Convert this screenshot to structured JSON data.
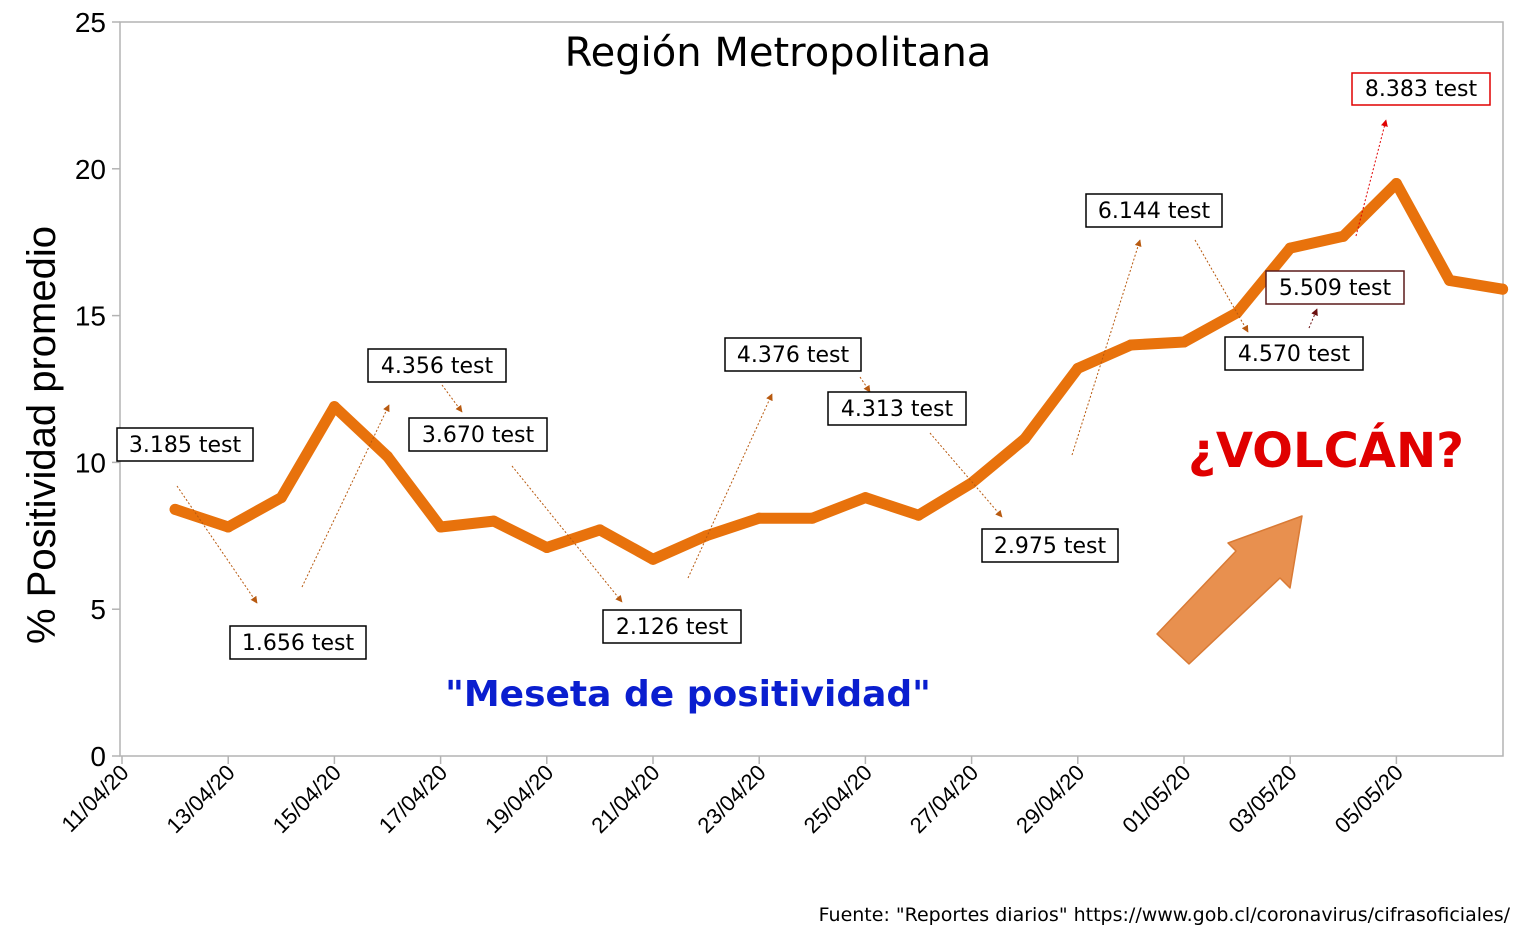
{
  "chart_data": {
    "type": "line",
    "title": "Región Metropolitana",
    "ylabel": "% Positividad promedio",
    "xlabel": "",
    "ylim": [
      0,
      25
    ],
    "yticks": [
      0,
      5,
      10,
      15,
      20,
      25
    ],
    "grid": false,
    "x_tick_labels": [
      "11/04/20",
      "13/04/20",
      "15/04/20",
      "17/04/20",
      "19/04/20",
      "21/04/20",
      "23/04/20",
      "25/04/20",
      "27/04/20",
      "29/04/20",
      "01/05/20",
      "03/05/20",
      "05/05/20"
    ],
    "series": [
      {
        "color": "#e8720c",
        "x": [
          "12/04/20",
          "13/04/20",
          "14/04/20",
          "15/04/20",
          "16/04/20",
          "17/04/20",
          "18/04/20",
          "19/04/20",
          "20/04/20",
          "21/04/20",
          "22/04/20",
          "23/04/20",
          "24/04/20",
          "25/04/20",
          "26/04/20",
          "27/04/20",
          "28/04/20",
          "29/04/20",
          "30/04/20",
          "01/05/20",
          "02/05/20",
          "03/05/20",
          "04/05/20",
          "05/05/20",
          "06/05/20",
          "07/05/20"
        ],
        "values": [
          8.4,
          7.8,
          8.8,
          11.9,
          10.2,
          7.8,
          8.0,
          7.1,
          7.7,
          6.7,
          7.5,
          8.1,
          8.1,
          8.8,
          8.2,
          9.3,
          10.8,
          13.2,
          14.0,
          14.1,
          15.1,
          17.3,
          17.7,
          19.5,
          16.2,
          15.9
        ]
      }
    ],
    "annotations": [
      {
        "text": "3.185 test",
        "border": "#000000"
      },
      {
        "text": "1.656 test",
        "border": "#000000"
      },
      {
        "text": "4.356 test",
        "border": "#000000"
      },
      {
        "text": "3.670 test",
        "border": "#000000"
      },
      {
        "text": "2.126 test",
        "border": "#000000"
      },
      {
        "text": "4.376 test",
        "border": "#000000"
      },
      {
        "text": "4.313 test",
        "border": "#000000"
      },
      {
        "text": "2.975 test",
        "border": "#000000"
      },
      {
        "text": "6.144 test",
        "border": "#000000"
      },
      {
        "text": "4.570 test",
        "border": "#000000"
      },
      {
        "text": "5.509 test",
        "border": "#5b1a1a"
      },
      {
        "text": "8.383 test",
        "border": "#e00000"
      }
    ],
    "callouts": {
      "meseta": "\"Meseta de positividad\"",
      "volcan": "¿VOLCÁN?"
    },
    "colors": {
      "line": "#e8720c",
      "arrow": "#b85a10",
      "meseta": "#0a1ecf",
      "volcan": "#e00000",
      "big_arrow": "#e8904f"
    }
  },
  "source_note": "Fuente: \"Reportes diarios\" https://www.gob.cl/coronavirus/cifrasoficiales/"
}
